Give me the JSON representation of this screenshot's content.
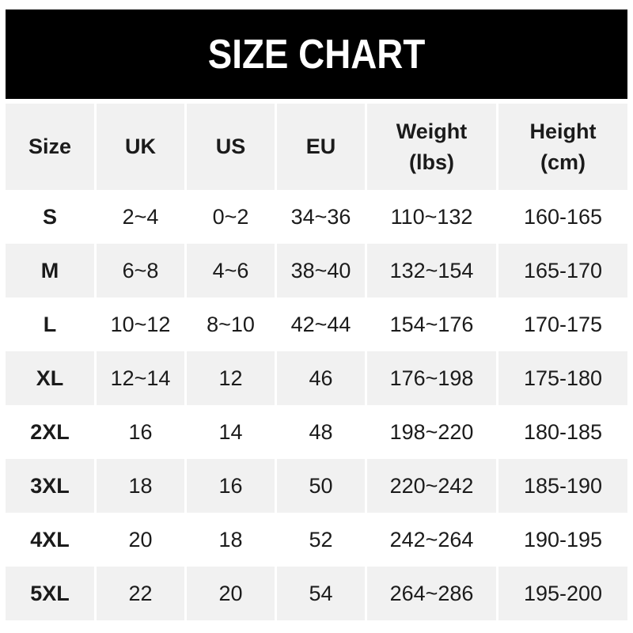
{
  "banner": {
    "title": "SIZE CHART"
  },
  "colors": {
    "banner_bg": "#000000",
    "banner_text": "#ffffff",
    "row_alt_bg": "#f1f1f1",
    "row_bg": "#ffffff",
    "text": "#1b1b1b",
    "separator": "#ffffff"
  },
  "chart_data": {
    "type": "table",
    "title": "SIZE CHART",
    "columns": [
      "Size",
      "UK",
      "US",
      "EU",
      "Weight\n(lbs)",
      "Height\n(cm)"
    ],
    "rows": [
      [
        "S",
        "2~4",
        "0~2",
        "34~36",
        "110~132",
        "160-165"
      ],
      [
        "M",
        "6~8",
        "4~6",
        "38~40",
        "132~154",
        "165-170"
      ],
      [
        "L",
        "10~12",
        "8~10",
        "42~44",
        "154~176",
        "170-175"
      ],
      [
        "XL",
        "12~14",
        "12",
        "46",
        "176~198",
        "175-180"
      ],
      [
        "2XL",
        "16",
        "14",
        "48",
        "198~220",
        "180-185"
      ],
      [
        "3XL",
        "18",
        "16",
        "50",
        "220~242",
        "185-190"
      ],
      [
        "4XL",
        "20",
        "18",
        "52",
        "242~264",
        "190-195"
      ],
      [
        "5XL",
        "22",
        "20",
        "54",
        "264~286",
        "195-200"
      ]
    ]
  }
}
